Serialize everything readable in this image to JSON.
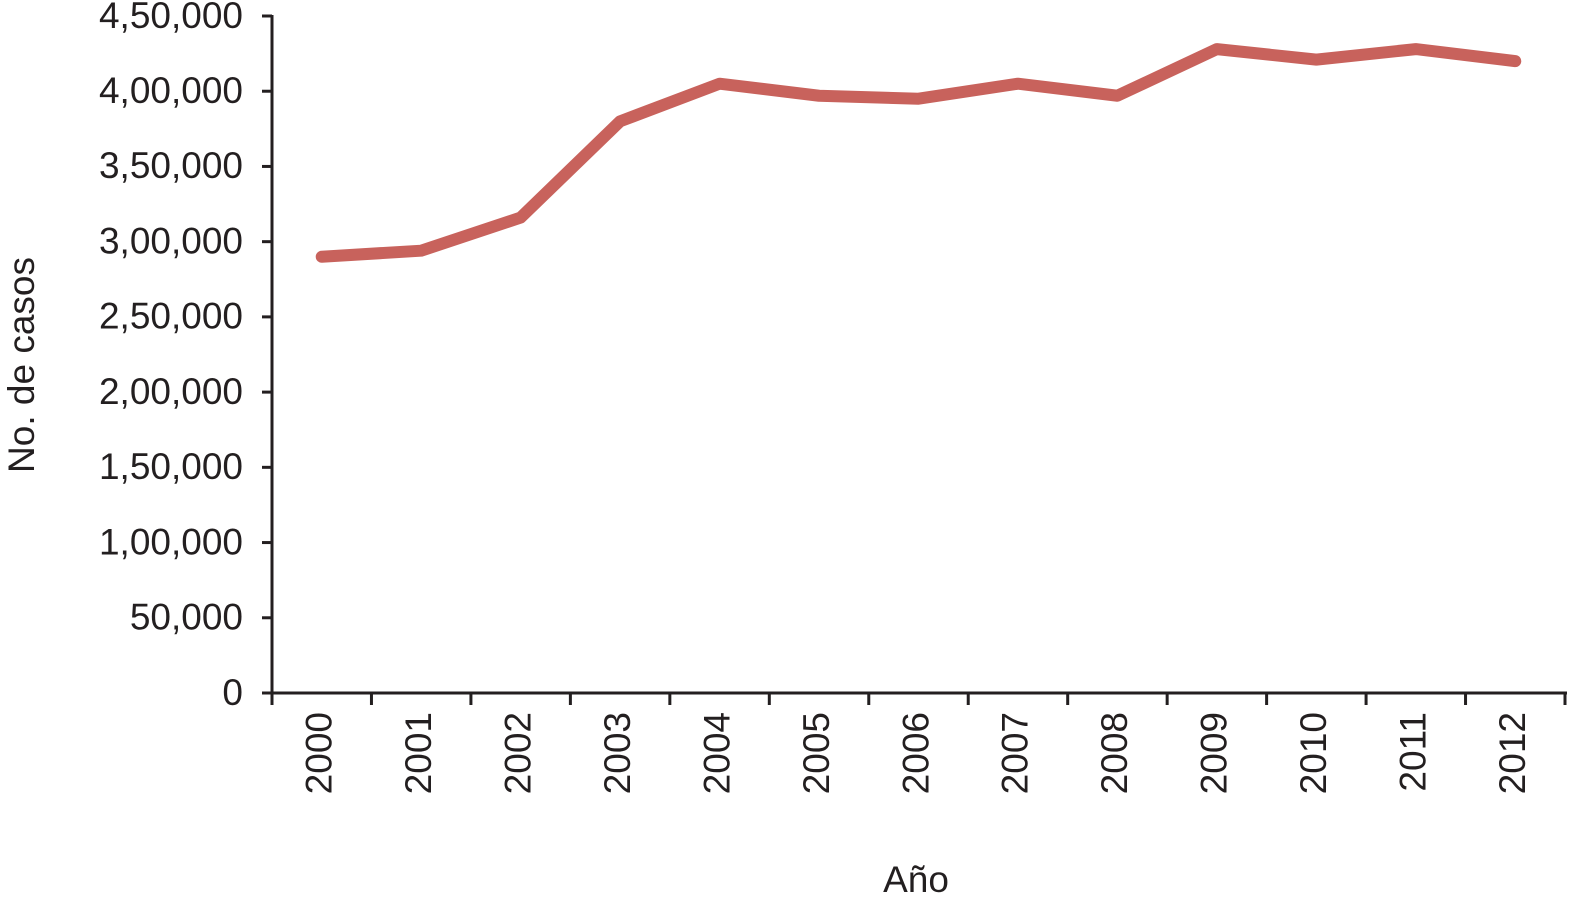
{
  "chart_data": {
    "type": "line",
    "x_label": "Año",
    "y_label": "No. de casos",
    "categories": [
      "2000",
      "2001",
      "2002",
      "2003",
      "2004",
      "2005",
      "2006",
      "2007",
      "2008",
      "2009",
      "2010",
      "2011",
      "2012"
    ],
    "series": [
      {
        "color": "#c8625c",
        "values": [
          290000,
          294000,
          316000,
          380000,
          405000,
          397000,
          395000,
          405000,
          397000,
          428000,
          421000,
          428000,
          420000
        ]
      }
    ],
    "ylim": [
      0,
      450000
    ],
    "yticks": [
      0,
      {
        "value": 50000,
        "label": "50,000"
      },
      {
        "value": 100000,
        "label": "1,00,000"
      },
      {
        "value": 150000,
        "label": "1,50,000"
      },
      {
        "value": 200000,
        "label": "2,00,000"
      },
      {
        "value": 250000,
        "label": "2,50,000"
      },
      {
        "value": 300000,
        "label": "3,00,000"
      },
      {
        "value": 350000,
        "label": "3,50,000"
      },
      {
        "value": 400000,
        "label": "4,00,000"
      },
      {
        "value": 450000,
        "label": "4,50,000"
      }
    ],
    "grid": false
  }
}
